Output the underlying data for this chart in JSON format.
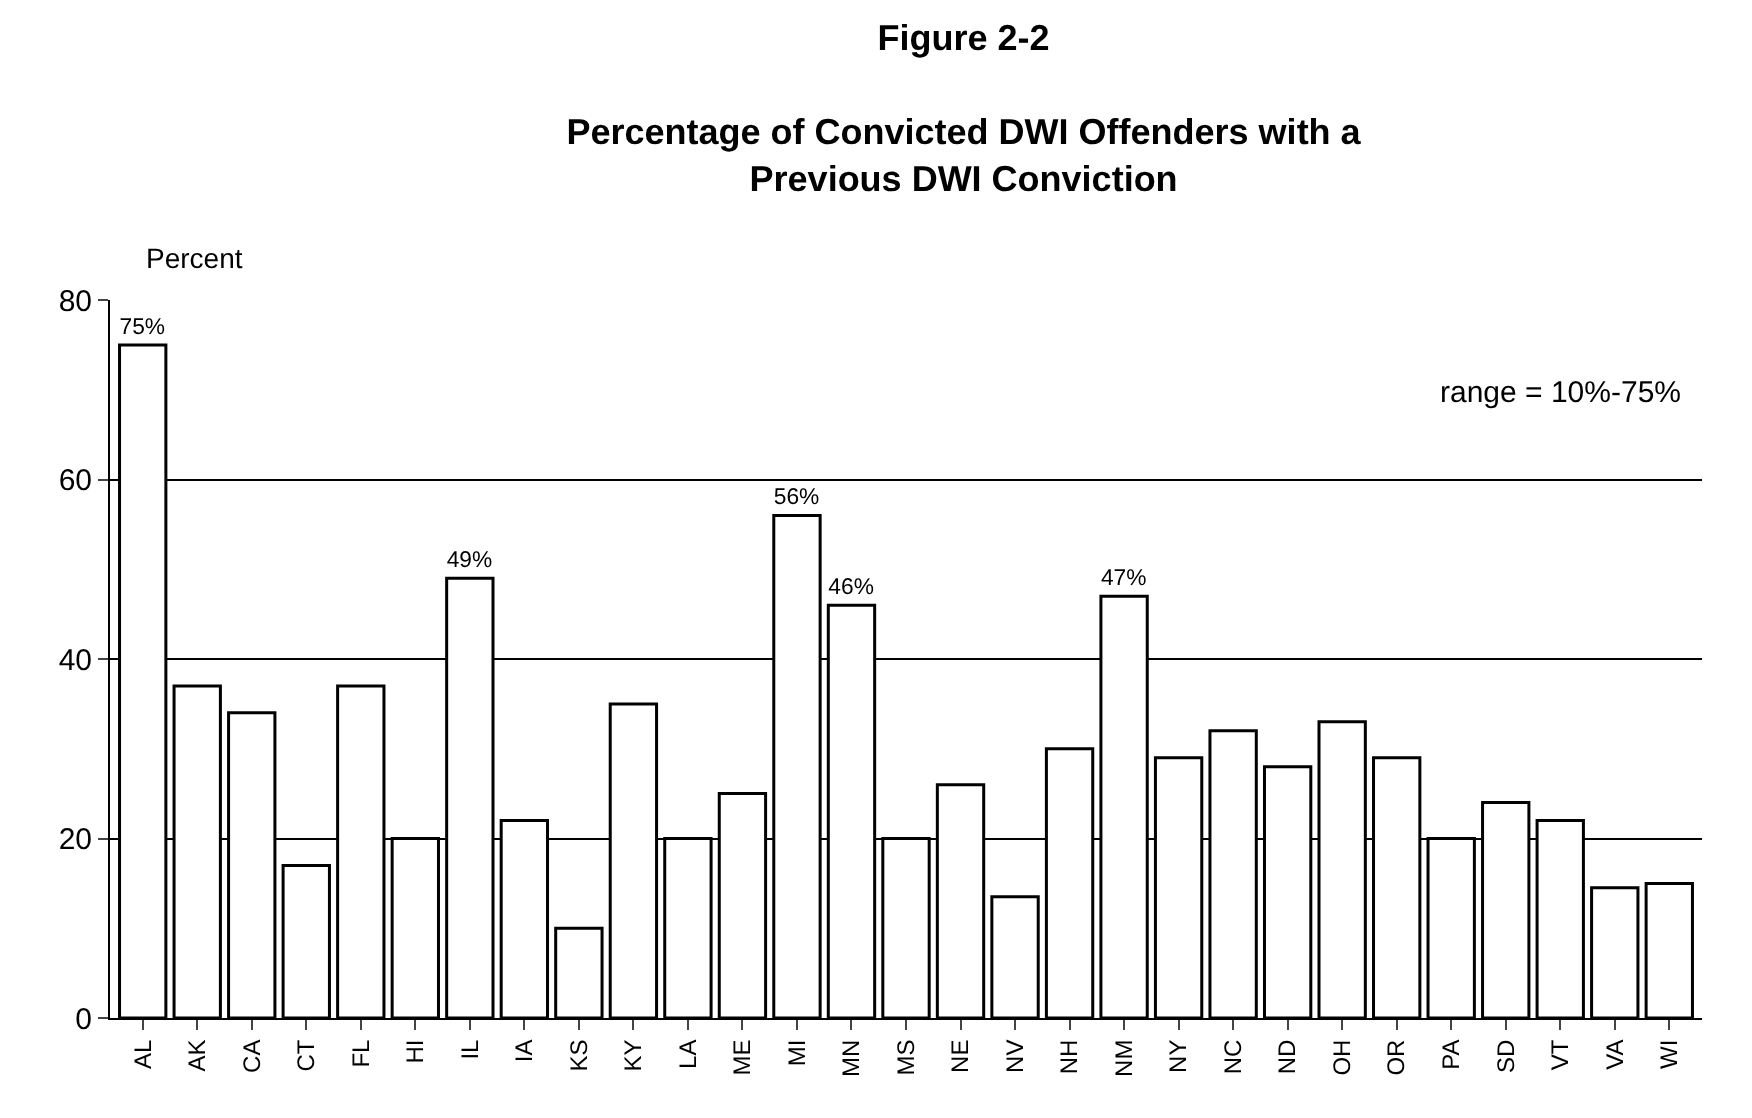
{
  "chart_data": {
    "type": "bar",
    "title": "Figure 2-2",
    "subtitle": "Percentage of Convicted DWI Offenders with a\nPrevious DWI Conviction",
    "ylabel": "Percent",
    "categories": [
      "AL",
      "AK",
      "CA",
      "CT",
      "FL",
      "HI",
      "IL",
      "IA",
      "KS",
      "KY",
      "LA",
      "ME",
      "MI",
      "MN",
      "MS",
      "NE",
      "NV",
      "NH",
      "NM",
      "NY",
      "NC",
      "ND",
      "OH",
      "OR",
      "PA",
      "SD",
      "VT",
      "VA",
      "WI"
    ],
    "values": [
      75,
      37,
      34,
      17,
      37,
      20,
      49,
      22,
      10,
      35,
      20,
      25,
      56,
      46,
      20,
      26,
      13.5,
      30,
      47,
      29,
      32,
      28,
      33,
      29,
      20,
      24,
      22,
      14.5,
      15
    ],
    "value_labels": [
      "75%",
      null,
      null,
      null,
      null,
      null,
      "49%",
      null,
      null,
      null,
      null,
      null,
      "56%",
      "46%",
      null,
      null,
      null,
      null,
      "47%",
      null,
      null,
      null,
      null,
      null,
      null,
      null,
      null,
      null,
      null
    ],
    "color": "#ffffff",
    "ylim": [
      0,
      80
    ],
    "yticks": [
      0,
      20,
      40,
      60,
      80
    ],
    "grid": "y",
    "annotations": [
      "range = 10%-75%"
    ]
  }
}
